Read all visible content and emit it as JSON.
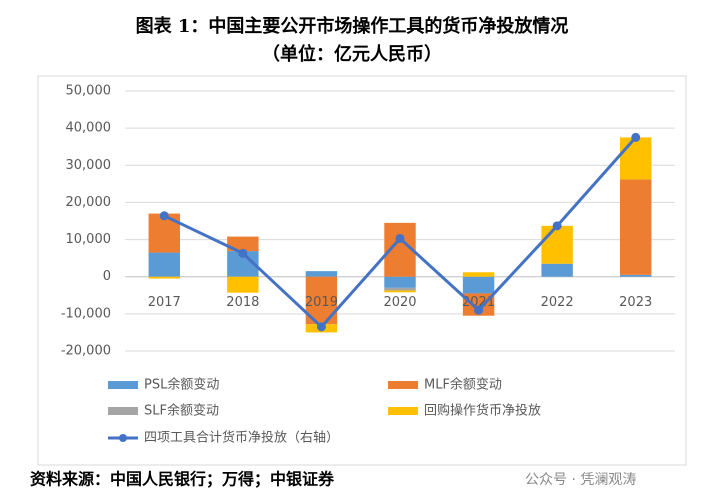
{
  "chart_data": {
    "type": "bar",
    "title": "图表 1：中国主要公开市场操作工具的货币净投放情况",
    "subtitle": "（单位：亿元人民币）",
    "categories": [
      "2017",
      "2018",
      "2019",
      "2020",
      "2021",
      "2022",
      "2023"
    ],
    "series": [
      {
        "name": "PSL余额变动",
        "color": "#5b9bd5",
        "values": [
          6500,
          6900,
          1500,
          -3000,
          -4500,
          3500,
          500
        ]
      },
      {
        "name": "MLF余额变动",
        "color": "#ed7d31",
        "values": [
          10500,
          3900,
          -12800,
          14500,
          -6000,
          0,
          25700
        ]
      },
      {
        "name": "SLF余额变动",
        "color": "#a5a5a5",
        "values": [
          0,
          0,
          0,
          -700,
          0,
          0,
          0
        ]
      },
      {
        "name": "回购操作货币净投放",
        "color": "#ffc000",
        "values": [
          -500,
          -4300,
          -2200,
          -500,
          1200,
          10200,
          11300
        ]
      },
      {
        "name": "四项工具合计货币净投放（右轴）",
        "type": "line",
        "color": "#4472c4",
        "values": [
          16400,
          6300,
          -13500,
          10300,
          -9000,
          13700,
          37500
        ]
      }
    ],
    "ylim": [
      -20000,
      50000
    ],
    "yticks": [
      {
        "value": -20000,
        "label": "-20,000"
      },
      {
        "value": -10000,
        "label": "-10,000"
      },
      0,
      {
        "value": 10000,
        "label": "10,000"
      },
      {
        "value": 20000,
        "label": "20,000"
      },
      {
        "value": 30000,
        "label": "30,000"
      },
      {
        "value": 40000,
        "label": "40,000"
      },
      {
        "value": 50000,
        "label": "50,000"
      }
    ],
    "grid": true,
    "source": "资料来源：中国人民银行；万得；中银证券",
    "watermark": "公众号 · 凭澜观涛"
  }
}
